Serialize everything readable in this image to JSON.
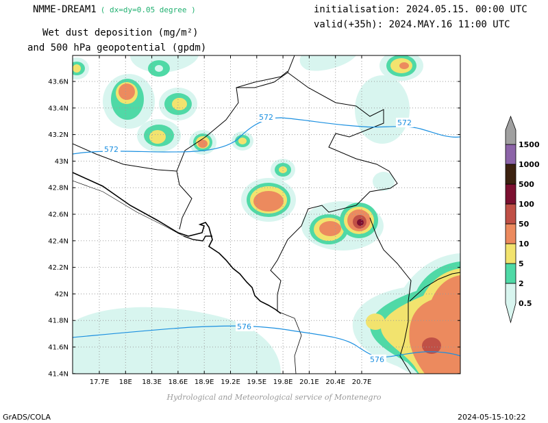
{
  "header": {
    "model_name": "NMME-DREAM1",
    "resolution": "( dx=dy=0.05 degree )",
    "variable_line1": "Wet dust deposition (mg/m²)",
    "variable_line2": "and 500 hPa geopotential (gpdm)",
    "initialisation": "initialisation: 2024.05.15. 00:00 UTC",
    "valid": "valid(+35h): 2024.MAY.16 11:00 UTC"
  },
  "map": {
    "lat_ticks": [
      "43.6N",
      "43.4N",
      "43.2N",
      "43N",
      "42.8N",
      "42.6N",
      "42.4N",
      "42.2N",
      "42N",
      "41.8N",
      "41.6N",
      "41.4N"
    ],
    "lon_ticks": [
      "17.7E",
      "18E",
      "18.3E",
      "18.6E",
      "18.9E",
      "19.2E",
      "19.5E",
      "19.8E",
      "20.1E",
      "20.4E",
      "20.7E"
    ],
    "contour_labels": [
      "572",
      "572",
      "572",
      "576",
      "576"
    ]
  },
  "legend": {
    "levels": [
      "0.5",
      "2",
      "5",
      "10",
      "50",
      "100",
      "500",
      "1000",
      "1500"
    ],
    "colors": [
      "#d8f5ef",
      "#4fd9a6",
      "#f2e36e",
      "#ec8a5e",
      "#c05046",
      "#7c1030",
      "#3c2210",
      "#8c64a8",
      "#a0a0a0"
    ]
  },
  "footer": {
    "left": "GrADS/COLA",
    "right": "2024-05-15-10:22",
    "credit": "Hydrological and Meteorological service of Montenegro"
  }
}
